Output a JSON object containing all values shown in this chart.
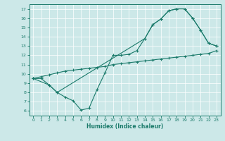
{
  "xlabel": "Humidex (Indice chaleur)",
  "bg_color": "#cce8e8",
  "line_color": "#1a7a6a",
  "grid_color": "#b0d0d0",
  "xlim": [
    -0.5,
    23.5
  ],
  "ylim": [
    5.5,
    17.5
  ],
  "xticks": [
    0,
    1,
    2,
    3,
    4,
    5,
    6,
    7,
    8,
    9,
    10,
    11,
    12,
    13,
    14,
    15,
    16,
    17,
    18,
    19,
    20,
    21,
    22,
    23
  ],
  "yticks": [
    6,
    7,
    8,
    9,
    10,
    11,
    12,
    13,
    14,
    15,
    16,
    17
  ],
  "line1_x": [
    0,
    1,
    2,
    3,
    4,
    5,
    6,
    7,
    8,
    9,
    10,
    11,
    12,
    13,
    14,
    15,
    16,
    17,
    18,
    19,
    20,
    21,
    22,
    23
  ],
  "line1_y": [
    9.5,
    9.7,
    9.9,
    10.1,
    10.3,
    10.4,
    10.5,
    10.6,
    10.7,
    10.8,
    11.0,
    11.1,
    11.2,
    11.3,
    11.4,
    11.5,
    11.6,
    11.7,
    11.8,
    11.9,
    12.0,
    12.1,
    12.2,
    12.5
  ],
  "line2_x": [
    0,
    1,
    2,
    3,
    4,
    5,
    6,
    7,
    8,
    9,
    10,
    11,
    12,
    13,
    14,
    15,
    16,
    17,
    18,
    19,
    20,
    21,
    22,
    23
  ],
  "line2_y": [
    9.5,
    9.5,
    8.8,
    8.0,
    7.5,
    7.1,
    6.1,
    6.3,
    8.3,
    10.1,
    12.0,
    12.0,
    12.1,
    12.5,
    13.8,
    15.3,
    15.9,
    16.8,
    17.0,
    17.0,
    16.0,
    14.7,
    13.3,
    13.0
  ],
  "line3_x": [
    0,
    2,
    3,
    14,
    15,
    16,
    17,
    18,
    19,
    20,
    21,
    22,
    23
  ],
  "line3_y": [
    9.5,
    8.8,
    8.0,
    13.8,
    15.3,
    15.9,
    16.8,
    17.0,
    17.0,
    16.0,
    14.7,
    13.3,
    13.0
  ]
}
